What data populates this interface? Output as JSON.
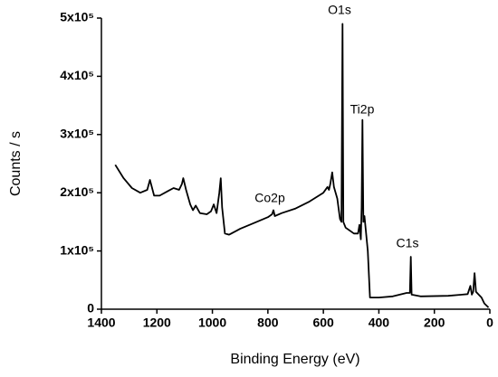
{
  "chart_data": {
    "type": "line",
    "xlabel": "Binding Energy (eV)",
    "ylabel": "Counts / s",
    "annotations": [
      "O1s",
      "Ti2p",
      "Co2p",
      "C1s"
    ],
    "color": "#000000",
    "x": [
      1350,
      1320,
      1290,
      1260,
      1235,
      1225,
      1210,
      1190,
      1160,
      1140,
      1120,
      1110,
      1105,
      1095,
      1080,
      1070,
      1060,
      1045,
      1020,
      1005,
      995,
      985,
      975,
      970,
      965,
      955,
      940,
      900,
      850,
      800,
      785,
      780,
      775,
      750,
      700,
      650,
      600,
      585,
      580,
      575,
      568,
      562,
      550,
      540,
      535,
      531,
      528,
      520,
      490,
      475,
      470,
      465,
      462,
      459,
      456,
      452,
      440,
      432,
      400,
      350,
      300,
      288,
      285,
      282,
      250,
      150,
      100,
      80,
      70,
      65,
      60,
      55,
      50,
      30,
      20,
      5
    ],
    "values": [
      248000,
      225000,
      208000,
      200000,
      205000,
      222000,
      195000,
      195000,
      203000,
      208000,
      205000,
      215000,
      225000,
      205000,
      180000,
      170000,
      178000,
      165000,
      163000,
      168000,
      180000,
      165000,
      200000,
      225000,
      175000,
      130000,
      128000,
      138000,
      148000,
      158000,
      163000,
      170000,
      160000,
      165000,
      173000,
      185000,
      200000,
      210000,
      205000,
      215000,
      235000,
      210000,
      190000,
      155000,
      150000,
      490000,
      150000,
      140000,
      130000,
      130000,
      145000,
      120000,
      175000,
      325000,
      150000,
      160000,
      100000,
      20000,
      20000,
      22000,
      28000,
      28000,
      90000,
      25000,
      22000,
      23000,
      25000,
      26000,
      40000,
      25000,
      30000,
      62000,
      30000,
      20000,
      10000,
      3000
    ],
    "xlim": [
      1400,
      0
    ],
    "ylim": [
      0,
      500000
    ],
    "xticks": [
      1400,
      1200,
      1000,
      800,
      600,
      400,
      200,
      0
    ],
    "yticks": [
      0,
      {
        "value": 100000,
        "label": "1x10⁵"
      },
      {
        "value": 200000,
        "label": "2x10⁵"
      },
      {
        "value": 300000,
        "label": "3x10⁵"
      },
      {
        "value": 400000,
        "label": "4x10⁵"
      },
      {
        "value": 500000,
        "label": "5x10⁵"
      }
    ]
  }
}
